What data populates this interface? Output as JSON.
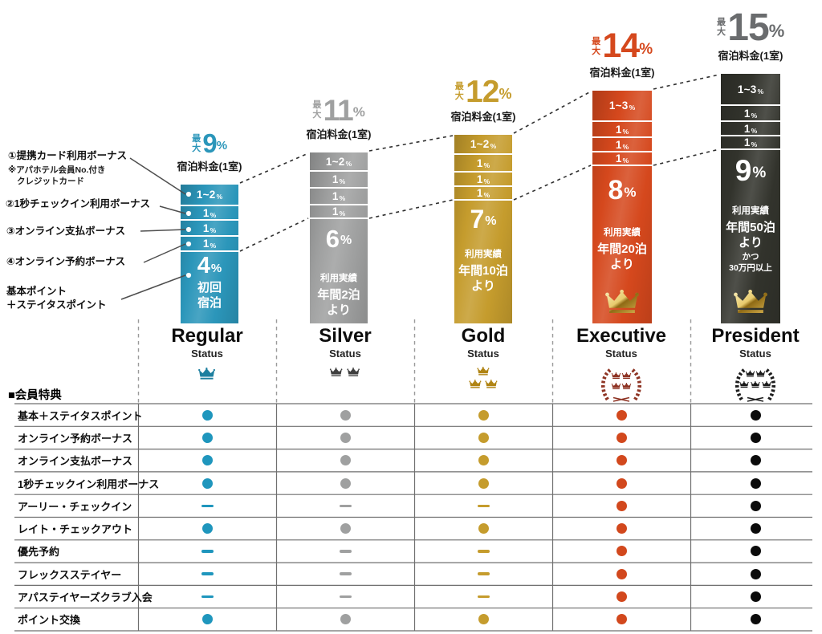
{
  "colors": {
    "background": "#ffffff",
    "regular": "#2b96ba",
    "silver": "#9fa0a0",
    "gold": "#c59c2d",
    "executive": "#d5481d",
    "president_bar": "#32332c",
    "president_headline": "#6a6c6e",
    "table_line": "#6f6f6f",
    "connector_line": "#2f2f2f",
    "crown_gold_light": "#f8eebc",
    "crown_gold_dark": "#8f6a14"
  },
  "left_annotations": [
    {
      "lines": [
        "①提携カード利用ボーナス"
      ],
      "note_lines": [
        "※アパホテル会員No.付き",
        "クレジットカード"
      ]
    },
    {
      "lines": [
        "②1秒チェックイン利用ボーナス"
      ],
      "note_lines": []
    },
    {
      "lines": [
        "③オンライン支払ボーナス"
      ],
      "note_lines": []
    },
    {
      "lines": [
        "④オンライン予約ボーナス"
      ],
      "note_lines": []
    },
    {
      "lines": [
        "基本ポイント",
        "＋ステイタスポイント"
      ],
      "note_lines": []
    }
  ],
  "chart_data": {
    "type": "bar",
    "stacked": true,
    "value_unit": "%",
    "categories": [
      "Regular",
      "Silver",
      "Gold",
      "Executive",
      "President"
    ],
    "max_values": [
      9,
      11,
      12,
      14,
      15
    ],
    "basis_label": "宿泊料金(1室)",
    "tiers": [
      {
        "name": "Regular",
        "status_word": "Status",
        "max_prefix": "最大",
        "max_value": "9",
        "max_suffix": "%",
        "rate_basis": "宿泊料金(1室)",
        "color": "#2b96ba",
        "headline_color": "#2b96ba",
        "dot_color": "#1f96bd",
        "crown_color": "#1d7f9f",
        "crowns": 1,
        "wreath": false,
        "gold_crown_on_bar": false,
        "segments": [
          {
            "text": "1~2",
            "suffix": "%",
            "value": 2
          },
          {
            "text": "1",
            "suffix": "%",
            "value": 1
          },
          {
            "text": "1",
            "suffix": "%",
            "value": 1
          },
          {
            "text": "1",
            "suffix": "%",
            "value": 1
          }
        ],
        "base": {
          "value": "4",
          "suffix": "%",
          "condition_lines": [
            {
              "text": "初回",
              "style": "lg"
            },
            {
              "text": "宿泊",
              "style": "lg"
            }
          ]
        }
      },
      {
        "name": "Silver",
        "status_word": "Status",
        "max_prefix": "最大",
        "max_value": "11",
        "max_suffix": "%",
        "rate_basis": "宿泊料金(1室)",
        "color": "#9fa0a0",
        "headline_color": "#9fa0a0",
        "dot_color": "#9fa0a0",
        "crown_color": "#3f3f3f",
        "crowns": 2,
        "wreath": false,
        "gold_crown_on_bar": false,
        "segments": [
          {
            "text": "1~2",
            "suffix": "%",
            "value": 2
          },
          {
            "text": "1",
            "suffix": "%",
            "value": 1
          },
          {
            "text": "1",
            "suffix": "%",
            "value": 1
          },
          {
            "text": "1",
            "suffix": "%",
            "value": 1
          }
        ],
        "base": {
          "value": "6",
          "suffix": "%",
          "condition_lines": [
            {
              "text": "利用実績",
              "style": "sm"
            },
            {
              "text": "年間2泊",
              "style": "lg"
            },
            {
              "text": "より",
              "style": "lg"
            }
          ]
        }
      },
      {
        "name": "Gold",
        "status_word": "Status",
        "max_prefix": "最大",
        "max_value": "12",
        "max_suffix": "%",
        "rate_basis": "宿泊料金(1室)",
        "color": "#c59c2d",
        "headline_color": "#c59c2d",
        "dot_color": "#c59c2d",
        "crown_color": "#b08414",
        "crowns": 3,
        "wreath": false,
        "gold_crown_on_bar": false,
        "segments": [
          {
            "text": "1~2",
            "suffix": "%",
            "value": 2
          },
          {
            "text": "1",
            "suffix": "%",
            "value": 1
          },
          {
            "text": "1",
            "susuffix": "%",
            "suffix": "%",
            "value": 1
          },
          {
            "text": "1",
            "suffix": "%",
            "value": 1
          }
        ],
        "base": {
          "value": "7",
          "suffix": "%",
          "condition_lines": [
            {
              "text": "利用実績",
              "style": "sm"
            },
            {
              "text": "年間10泊",
              "style": "lg"
            },
            {
              "text": "より",
              "style": "lg"
            }
          ]
        }
      },
      {
        "name": "Executive",
        "status_word": "Status",
        "max_prefix": "最大",
        "max_value": "14",
        "max_suffix": "%",
        "rate_basis": "宿泊料金(1室)",
        "color": "#d5481d",
        "headline_color": "#d5481d",
        "dot_color": "#d2481d",
        "crown_color": "#8e3323",
        "crowns": 4,
        "wreath": true,
        "gold_crown_on_bar": true,
        "segments": [
          {
            "text": "1~3",
            "suffix": "%",
            "value": 3
          },
          {
            "text": "1",
            "suffix": "%",
            "value": 1
          },
          {
            "text": "1",
            "suffix": "%",
            "value": 1
          },
          {
            "text": "1",
            "suffix": "%",
            "value": 1
          }
        ],
        "base": {
          "value": "8",
          "suffix": "%",
          "condition_lines": [
            {
              "text": "利用実績",
              "style": "sm"
            },
            {
              "text": "年間20泊",
              "style": "lg"
            },
            {
              "text": "より",
              "style": "lg"
            }
          ]
        }
      },
      {
        "name": "President",
        "status_word": "Status",
        "max_prefix": "最大",
        "max_value": "15",
        "max_suffix": "%",
        "rate_basis": "宿泊料金(1室)",
        "color": "#32332c",
        "headline_color": "#6a6c6e",
        "dot_color": "#0b0b0b",
        "crown_color": "#1c1c1c",
        "crowns": 5,
        "wreath": true,
        "gold_crown_on_bar": true,
        "segments": [
          {
            "text": "1~3",
            "suffix": "%",
            "value": 3
          },
          {
            "text": "1",
            "suffix": "%",
            "value": 1
          },
          {
            "text": "1",
            "suffix": "%",
            "value": 1
          },
          {
            "text": "1",
            "suffix": "%",
            "value": 1
          }
        ],
        "base": {
          "value": "9",
          "suffix": "%",
          "condition_lines": [
            {
              "text": "利用実績",
              "style": "sm"
            },
            {
              "text": "年間50泊",
              "style": "lg"
            },
            {
              "text": "より",
              "style": "lg"
            },
            {
              "text": "かつ",
              "style": "xs"
            },
            {
              "text": "30万円以上",
              "style": "xs"
            }
          ]
        }
      }
    ]
  },
  "benefits_table": {
    "header": "■会員特典",
    "columns": [
      "Regular",
      "Silver",
      "Gold",
      "Executive",
      "President"
    ],
    "rows": [
      {
        "label": "基本＋ステイタスポイント",
        "values": [
          true,
          true,
          true,
          true,
          true
        ]
      },
      {
        "label": "オンライン予約ボーナス",
        "values": [
          true,
          true,
          true,
          true,
          true
        ]
      },
      {
        "label": "オンライン支払ボーナス",
        "values": [
          true,
          true,
          true,
          true,
          true
        ]
      },
      {
        "label": "1秒チェックイン利用ボーナス",
        "values": [
          true,
          true,
          true,
          true,
          true
        ]
      },
      {
        "label": "アーリー・チェックイン",
        "values": [
          false,
          false,
          false,
          true,
          true
        ]
      },
      {
        "label": "レイト・チェックアウト",
        "values": [
          true,
          true,
          true,
          true,
          true
        ]
      },
      {
        "label": "優先予約",
        "values": [
          false,
          false,
          false,
          true,
          true
        ]
      },
      {
        "label": "フレックスステイヤー",
        "values": [
          false,
          false,
          false,
          true,
          true
        ]
      },
      {
        "label": "アパステイヤーズクラブ入会",
        "values": [
          false,
          false,
          false,
          true,
          true
        ]
      },
      {
        "label": "ポイント交換",
        "values": [
          true,
          true,
          true,
          true,
          true
        ]
      }
    ]
  }
}
